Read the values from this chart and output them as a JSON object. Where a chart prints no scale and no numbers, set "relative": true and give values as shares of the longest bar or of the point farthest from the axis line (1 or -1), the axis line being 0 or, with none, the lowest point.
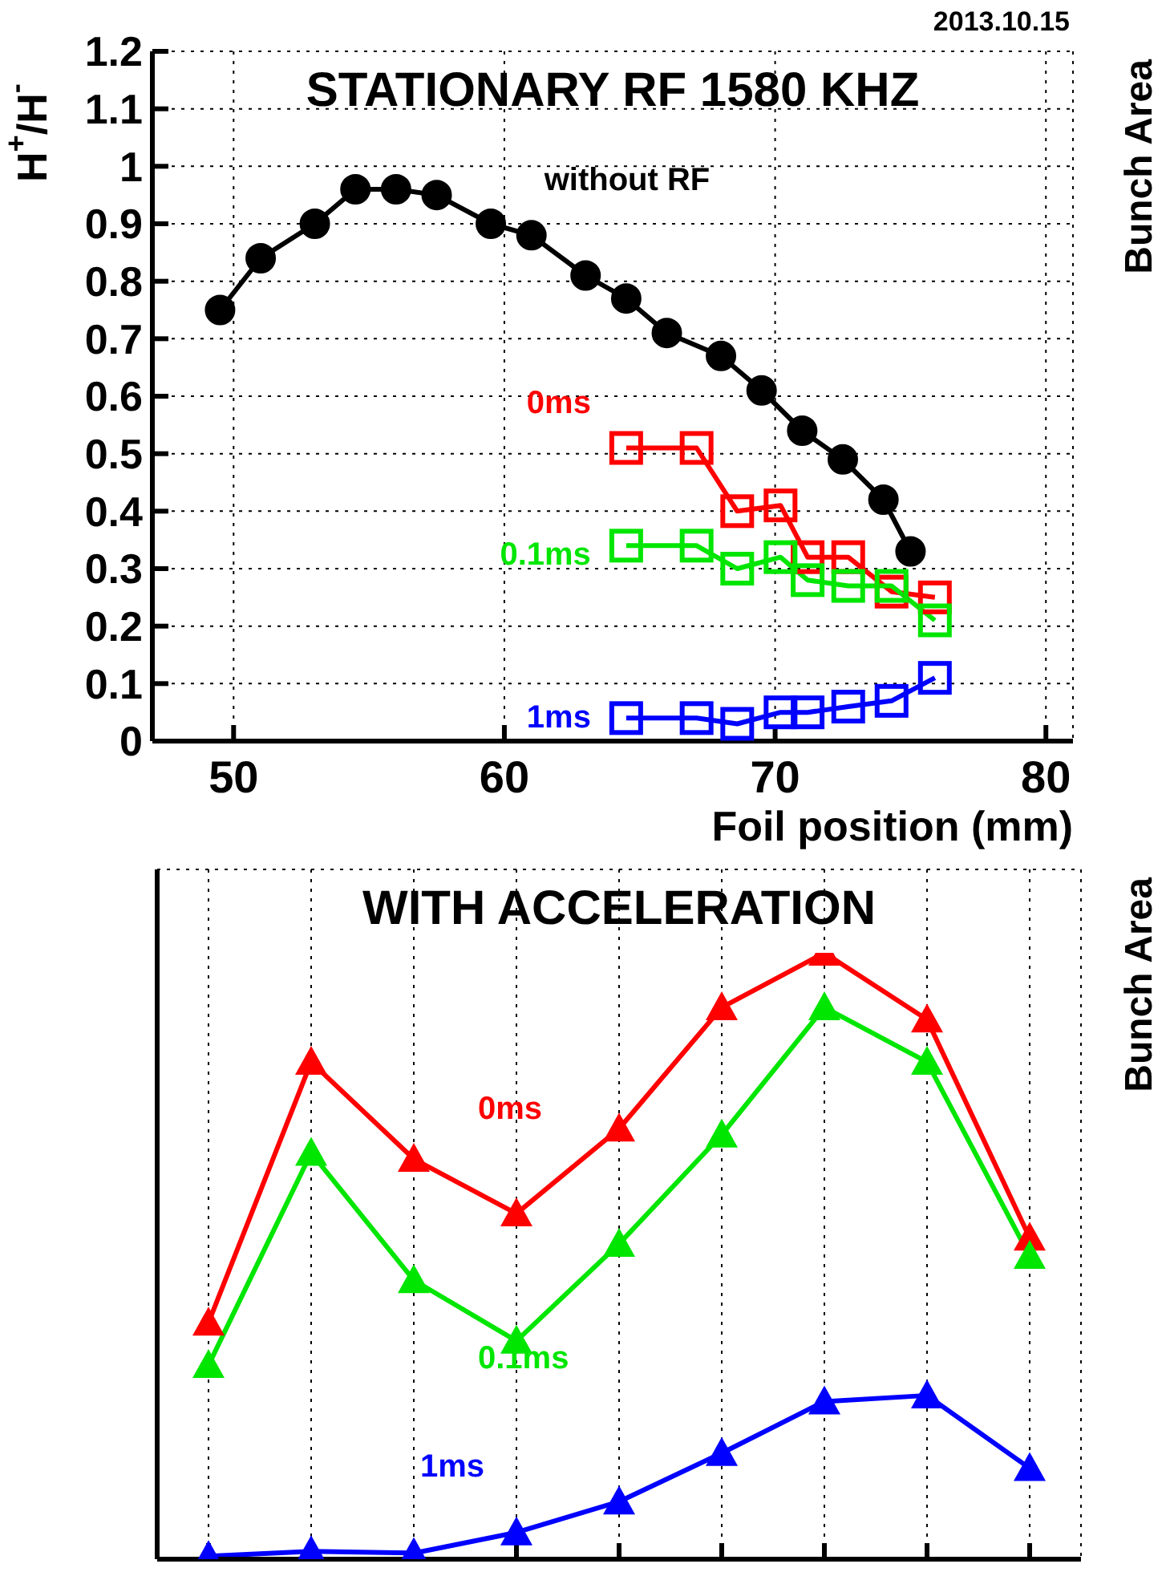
{
  "chart_data": [
    {
      "type": "line",
      "title": "STATIONARY RF 1580 KHZ",
      "xlabel": "Foil position (mm)",
      "ylabel": "H$^{+}$/H$^{-}$",
      "y2label": "Bunch Area",
      "annotations": [
        "2013.10.15"
      ],
      "xlim": [
        47,
        81
      ],
      "xticks": [
        50,
        60,
        70,
        80
      ],
      "ylim": [
        0,
        1.2
      ],
      "yticks": [
        0,
        0.1,
        0.2,
        0.3,
        0.4,
        0.5,
        0.6,
        0.7,
        0.8,
        0.9,
        1,
        1.1,
        1.2
      ],
      "grid": true,
      "series": [
        {
          "name": "without RF",
          "color": "#000000",
          "marker": "circle",
          "x": [
            49.5,
            51,
            53,
            54.5,
            56,
            57.5,
            59.5,
            61,
            63,
            64.5,
            66,
            68,
            69.5,
            71,
            72.5,
            74,
            75
          ],
          "values": [
            0.75,
            0.84,
            0.9,
            0.96,
            0.96,
            0.95,
            0.9,
            0.88,
            0.81,
            0.77,
            0.71,
            0.67,
            0.61,
            0.54,
            0.49,
            0.42,
            0.33
          ]
        },
        {
          "name": "0ms",
          "color": "#ff0000",
          "marker": "square",
          "x": [
            64.5,
            67.1,
            68.6,
            70.2,
            71.2,
            72.7,
            74.3,
            75.9
          ],
          "values": [
            0.51,
            0.51,
            0.4,
            0.41,
            0.32,
            0.32,
            0.26,
            0.25
          ]
        },
        {
          "name": "0.1ms",
          "color": "#00e600",
          "marker": "square",
          "x": [
            64.5,
            67.1,
            68.6,
            70.2,
            71.2,
            72.7,
            74.3,
            75.9
          ],
          "values": [
            0.34,
            0.34,
            0.3,
            0.32,
            0.28,
            0.27,
            0.27,
            0.21
          ]
        },
        {
          "name": "1ms",
          "color": "#0000ff",
          "marker": "square",
          "x": [
            64.5,
            67.1,
            68.6,
            70.2,
            71.2,
            72.7,
            74.3,
            75.9
          ],
          "values": [
            0.04,
            0.04,
            0.03,
            0.05,
            0.05,
            0.06,
            0.07,
            0.11
          ]
        }
      ]
    },
    {
      "type": "line",
      "title": "WITH ACCELERATION",
      "y2label": "Bunch Area",
      "relative": true,
      "categories": [
        null,
        null,
        null,
        null,
        null,
        null,
        null,
        null,
        null
      ],
      "grid": true,
      "series": [
        {
          "name": "0ms",
          "color": "#ff0000",
          "marker": "triangle",
          "values": [
            0.39,
            0.82,
            0.66,
            0.57,
            0.71,
            0.91,
            1,
            0.89,
            0.53
          ]
        },
        {
          "name": "0.1ms",
          "color": "#00e600",
          "marker": "triangle",
          "values": [
            0.32,
            0.67,
            0.46,
            0.36,
            0.52,
            0.7,
            0.91,
            0.82,
            0.5
          ]
        },
        {
          "name": "1ms",
          "color": "#0000ff",
          "marker": "triangle",
          "values": [
            0.005,
            0.013,
            0.01,
            0.044,
            0.095,
            0.175,
            0.26,
            0.27,
            0.15
          ]
        }
      ]
    }
  ]
}
